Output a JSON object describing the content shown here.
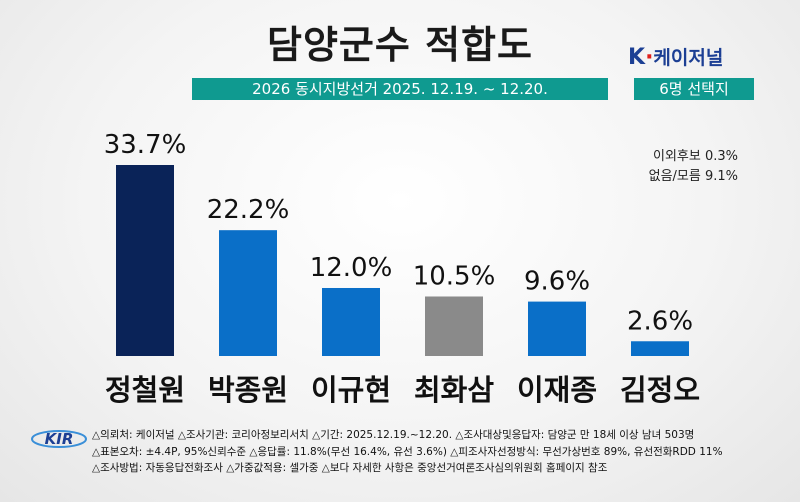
{
  "header": {
    "title": "담양군수 적합도",
    "subtitle": "2026 동시지방선거 2025. 12.19. ~ 12.20.",
    "brand_k": "K",
    "brand_dot": "·",
    "brand_rest": "케이저널",
    "method_badge": "6명 선택지"
  },
  "others": {
    "line1": "이외후보 0.3%",
    "line2": "없음/모름 9.1%"
  },
  "chart_data": {
    "type": "bar",
    "title": "담양군수 적합도",
    "categories": [
      "정철원",
      "박종원",
      "이규현",
      "최화삼",
      "이재종",
      "김정오"
    ],
    "values": [
      33.7,
      22.2,
      12.0,
      10.5,
      9.6,
      2.6
    ],
    "value_labels": [
      "33.7%",
      "22.2%",
      "12.0%",
      "10.5%",
      "9.6%",
      "2.6%"
    ],
    "colors": [
      "#0a2358",
      "#0a6fc8",
      "#0a6fc8",
      "#8a8a8a",
      "#0a6fc8",
      "#0a6fc8"
    ],
    "unit": "%",
    "ylim": [
      0,
      33.7
    ],
    "grid": false,
    "xlabel": "",
    "ylabel": ""
  },
  "footer": {
    "logo_text": "KIR",
    "lines": [
      "△의뢰처: 케이저널  △조사기관: 코리아정보리서치  △기간: 2025.12.19.~12.20.  △조사대상및응답자: 담양군 만 18세 이상 남녀 503명",
      "△표본오차: ±4.4P, 95%신뢰수준 △응답률: 11.8%(무선 16.4%, 유선 3.6%) △피조사자선정방식: 무선가상번호 89%, 유선전화RDD 11%",
      "△조사방법: 자동응답전화조사 △가중값적용: 셀가중 △보다 자세한 사항은 중앙선거여론조사심의위원회 홈페이지 참조"
    ]
  }
}
